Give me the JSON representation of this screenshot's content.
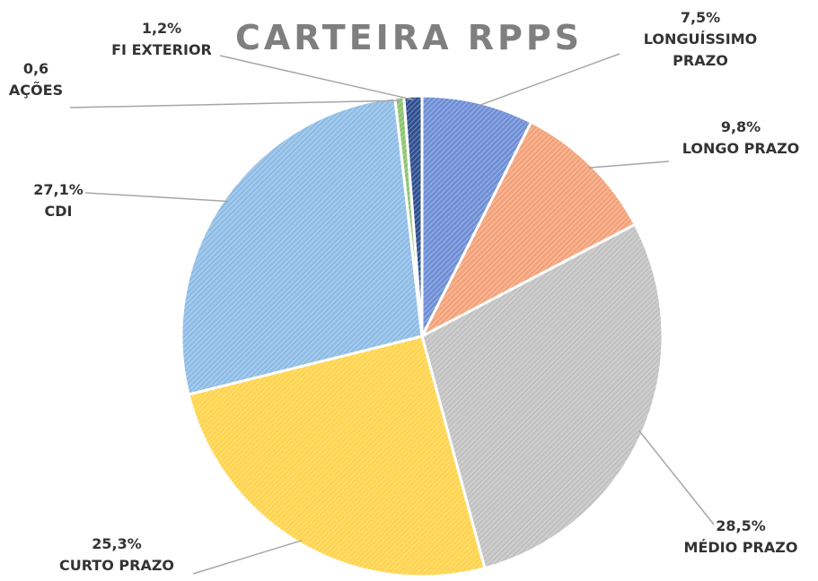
{
  "chart_data": {
    "type": "pie",
    "title": "CARTEIRA RPPS",
    "categories": [
      "LONGUÍSSIMO PRAZO",
      "LONGO PRAZO",
      "MÉDIO PRAZO",
      "CURTO PRAZO",
      "CDI",
      "AÇÕES",
      "FI EXTERIOR"
    ],
    "values": [
      7.5,
      9.8,
      28.5,
      25.3,
      27.1,
      0.6,
      1.2
    ],
    "value_labels": [
      "7,5%",
      "9,8%",
      "28,5%",
      "25,3%",
      "27,1%",
      "0,6",
      "1,2%"
    ],
    "colors": [
      "#6f8fd6",
      "#f4a27a",
      "#c2c2c2",
      "#ffd44d",
      "#8fbde6",
      "#8cc46e",
      "#2f4f8f"
    ]
  }
}
